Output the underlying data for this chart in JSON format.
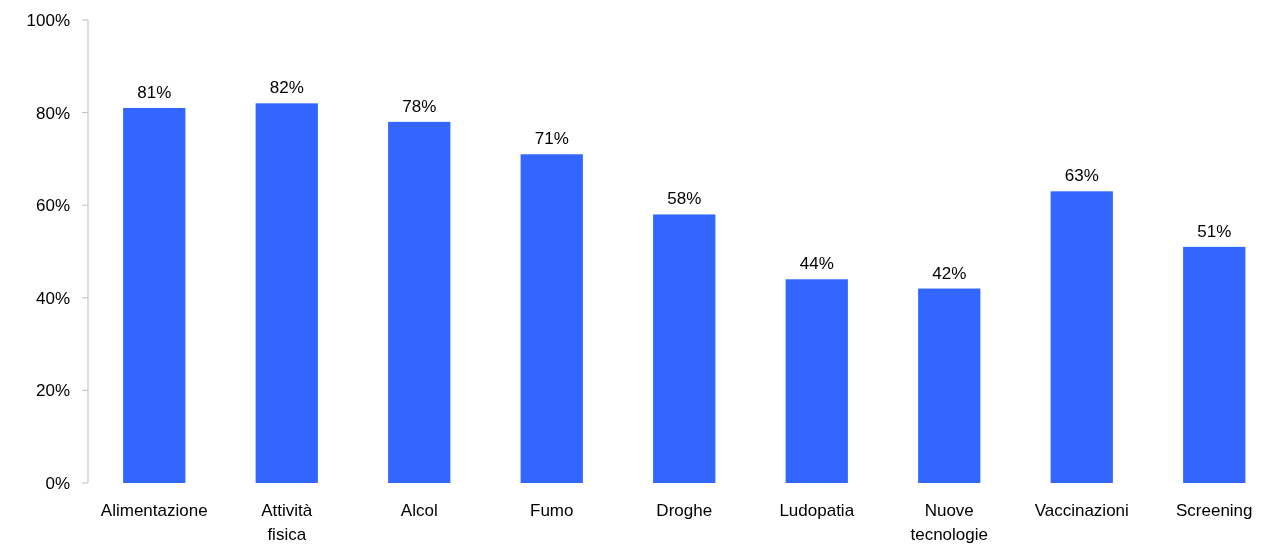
{
  "chart_data": {
    "type": "bar",
    "categories": [
      "Alimentazione",
      "Attività fisica",
      "Alcol",
      "Fumo",
      "Droghe",
      "Ludopatia",
      "Nuove tecnologie",
      "Vaccinazioni",
      "Screening"
    ],
    "values": [
      81,
      82,
      78,
      71,
      58,
      44,
      42,
      63,
      51
    ],
    "value_labels": [
      "81%",
      "82%",
      "78%",
      "71%",
      "58%",
      "44%",
      "42%",
      "63%",
      "51%"
    ],
    "color": "#3366ff",
    "ylim": [
      0,
      100
    ],
    "yticks": [
      {
        "value": 0,
        "label": "0%"
      },
      {
        "value": 20,
        "label": "20%"
      },
      {
        "value": 40,
        "label": "40%"
      },
      {
        "value": 60,
        "label": "60%"
      },
      {
        "value": 80,
        "label": "80%"
      },
      {
        "value": 100,
        "label": "100%"
      }
    ],
    "grid": false
  }
}
